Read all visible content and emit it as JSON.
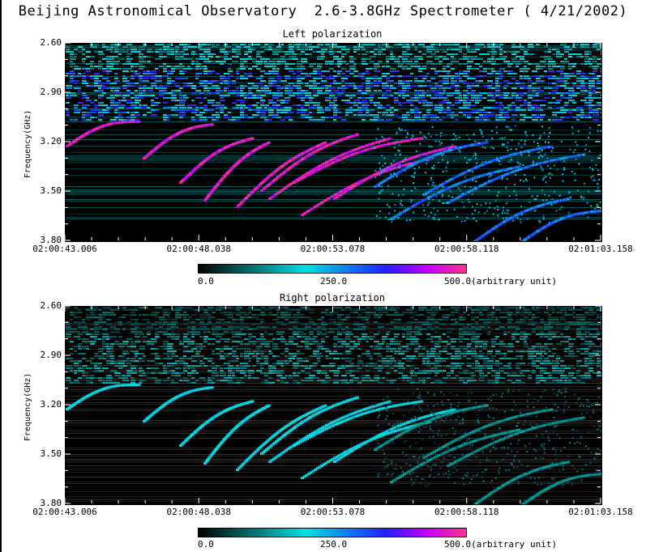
{
  "title": "Beijing Astronomical Observatory  2.6-3.8GHz Spectrometer ( 4/21/2002)",
  "chart_data": [
    {
      "type": "heatmap",
      "title": "Left polarization",
      "ylabel": "Frequency(GHz)",
      "yticks": [
        "2.60",
        "2.90",
        "3.20",
        "3.50",
        "3.80"
      ],
      "xticks": [
        "02:00:43.006",
        "02:00:48.038",
        "02:00:53.078",
        "02:00:58.118",
        "02:01:03.158"
      ],
      "ylim": [
        2.6,
        3.8
      ],
      "colorbar": {
        "min_label": "0.0",
        "mid_label": "250.0",
        "max_label": "500.0(arbitrary unit)",
        "range": [
          0,
          500
        ]
      },
      "intensity_scale": 1.0
    },
    {
      "type": "heatmap",
      "title": "Right polarization",
      "ylabel": "Frequency(GHz)",
      "yticks": [
        "2.60",
        "2.90",
        "3.20",
        "3.50",
        "3.80"
      ],
      "xticks": [
        "02:00:43.006",
        "02:00:48.038",
        "02:00:53.078",
        "02:00:58.118",
        "02:01:03.158"
      ],
      "ylim": [
        2.6,
        3.8
      ],
      "colorbar": {
        "min_label": "0.0",
        "mid_label": "250.0",
        "max_label": "500.0(arbitrary unit)",
        "range": [
          0,
          500
        ]
      },
      "intensity_scale": 0.45
    }
  ],
  "colors": {
    "low": "#000000",
    "cyan": "#00e0e0",
    "blue": "#2020ff",
    "purple": "#c000ff",
    "magenta": "#ff3090"
  }
}
